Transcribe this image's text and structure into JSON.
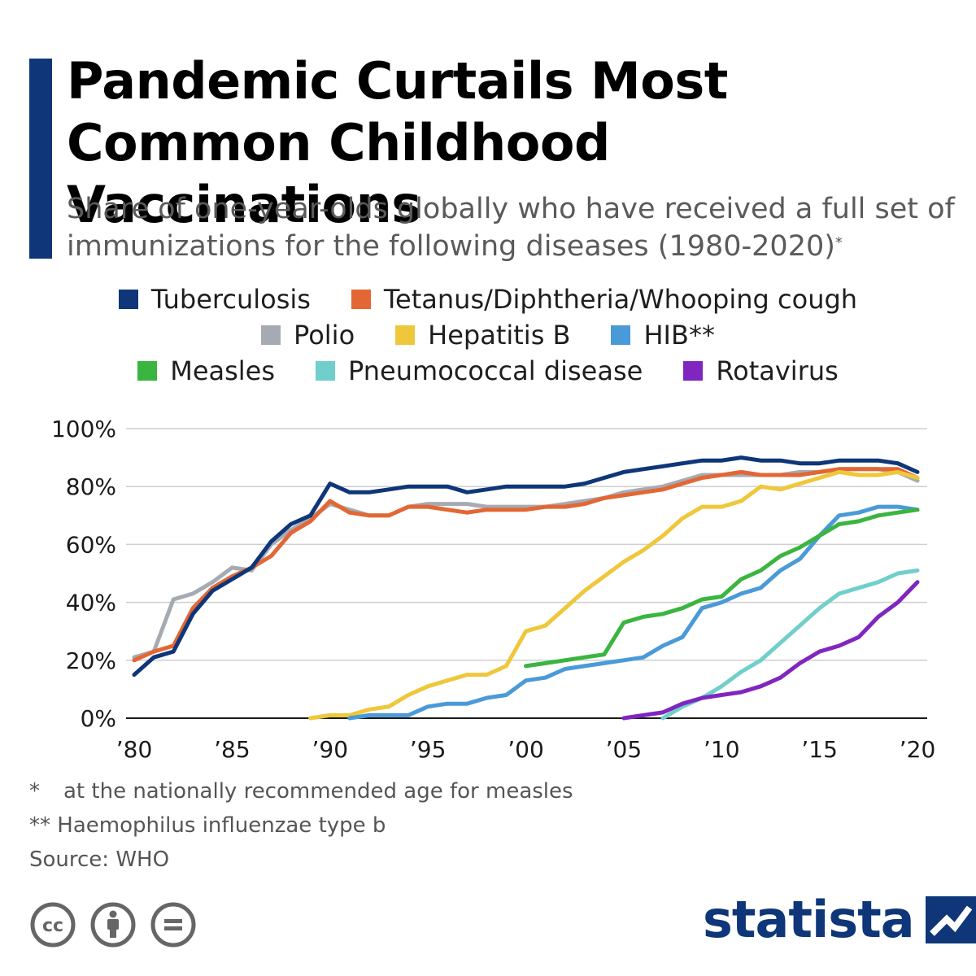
{
  "title": "Pandemic Curtails Most Common Childhood Vaccinations",
  "subtitle": "Share of one-year-olds globally who have received a full set of immunizations for the following diseases (1980-2020)",
  "subtitle_mark": "*",
  "legend": [
    [
      {
        "label": "Tuberculosis",
        "color": "#0e3679"
      },
      {
        "label": "Tetanus/Diphtheria/Whooping cough",
        "color": "#e36734"
      }
    ],
    [
      {
        "label": "Polio",
        "color": "#a6abb3"
      },
      {
        "label": "Hepatitis B",
        "color": "#efc73a"
      },
      {
        "label": "HIB**",
        "color": "#4a9ad8"
      }
    ],
    [
      {
        "label": "Measles",
        "color": "#3ab53f"
      },
      {
        "label": "Pneumococcal disease",
        "color": "#71cfcb"
      },
      {
        "label": "Rotavirus",
        "color": "#7f26c0"
      }
    ]
  ],
  "chart_data": {
    "type": "line",
    "xlabel": "",
    "ylabel": "",
    "xlim": [
      1980,
      2020
    ],
    "ylim": [
      0,
      100
    ],
    "x_ticks": [
      1980,
      1985,
      1990,
      1995,
      2000,
      2005,
      2010,
      2015,
      2020
    ],
    "x_tick_labels": [
      "’80",
      "’85",
      "’90",
      "’95",
      "’00",
      "’05",
      "’10",
      "’15",
      "’20"
    ],
    "y_ticks": [
      0,
      20,
      40,
      60,
      80,
      100
    ],
    "y_tick_labels": [
      "0%",
      "20%",
      "40%",
      "60%",
      "80%",
      "100%"
    ],
    "grid": true,
    "legend_position": "top",
    "series": [
      {
        "name": "Polio",
        "color": "#a6abb3",
        "start": 1980,
        "values": [
          21,
          23,
          41,
          43,
          47,
          52,
          51,
          60,
          65,
          69,
          74,
          72,
          70,
          70,
          73,
          74,
          74,
          74,
          73,
          73,
          73,
          73,
          74,
          75,
          76,
          78,
          79,
          80,
          82,
          84,
          84,
          84,
          84,
          84,
          85,
          85,
          86,
          86,
          86,
          85,
          82
        ]
      },
      {
        "name": "Tetanus/Diphtheria/Whooping cough",
        "color": "#e36734",
        "start": 1980,
        "values": [
          20,
          23,
          25,
          38,
          45,
          49,
          52,
          56,
          64,
          68,
          75,
          71,
          70,
          70,
          73,
          73,
          72,
          71,
          72,
          72,
          72,
          73,
          73,
          74,
          76,
          77,
          78,
          79,
          81,
          83,
          84,
          85,
          84,
          84,
          84,
          85,
          86,
          86,
          86,
          86,
          83
        ]
      },
      {
        "name": "Tuberculosis",
        "color": "#0e3679",
        "start": 1980,
        "values": [
          15,
          21,
          23,
          36,
          44,
          48,
          52,
          61,
          67,
          70,
          81,
          78,
          78,
          79,
          80,
          80,
          80,
          78,
          79,
          80,
          80,
          80,
          80,
          81,
          83,
          85,
          86,
          87,
          88,
          89,
          89,
          90,
          89,
          89,
          88,
          88,
          89,
          89,
          89,
          88,
          85
        ]
      },
      {
        "name": "Hepatitis B",
        "color": "#efc73a",
        "start": 1989,
        "values": [
          0,
          1,
          1,
          3,
          4,
          8,
          11,
          13,
          15,
          15,
          18,
          30,
          32,
          38,
          44,
          49,
          54,
          58,
          63,
          69,
          73,
          73,
          75,
          80,
          79,
          81,
          83,
          85,
          84,
          84,
          85,
          83
        ]
      },
      {
        "name": "HIB**",
        "color": "#4a9ad8",
        "start": 1991,
        "values": [
          0,
          1,
          1,
          1,
          4,
          5,
          5,
          7,
          8,
          13,
          14,
          17,
          18,
          19,
          20,
          21,
          25,
          28,
          38,
          40,
          43,
          45,
          51,
          55,
          63,
          70,
          71,
          73,
          73,
          72
        ]
      },
      {
        "name": "Measles",
        "color": "#3ab53f",
        "start": 2000,
        "values": [
          18,
          19,
          20,
          21,
          22,
          33,
          35,
          36,
          38,
          41,
          42,
          48,
          51,
          56,
          59,
          63,
          67,
          68,
          70,
          71,
          72
        ]
      },
      {
        "name": "Pneumococcal disease",
        "color": "#71cfcb",
        "start": 2007,
        "values": [
          0,
          4,
          7,
          11,
          16,
          20,
          26,
          32,
          38,
          43,
          45,
          47,
          50,
          51
        ]
      },
      {
        "name": "Rotavirus",
        "color": "#7f26c0",
        "start": 2005,
        "values": [
          0,
          1,
          2,
          5,
          7,
          8,
          9,
          11,
          14,
          19,
          23,
          25,
          28,
          35,
          40,
          47
        ]
      }
    ]
  },
  "notes": [
    {
      "mark": "*",
      "text": "at the nationally recommended age for measles"
    },
    {
      "mark": "**",
      "text": "Haemophilus influenzae type b"
    }
  ],
  "source": "Source: WHO",
  "brand": "statista",
  "footer_icons": [
    "cc-icon",
    "attribution-icon",
    "no-derivatives-icon"
  ]
}
